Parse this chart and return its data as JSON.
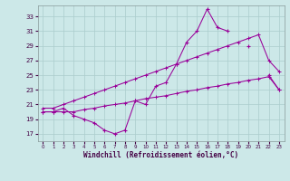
{
  "x": [
    0,
    1,
    2,
    3,
    4,
    5,
    6,
    7,
    8,
    9,
    10,
    11,
    12,
    13,
    14,
    15,
    16,
    17,
    18,
    19,
    20,
    21,
    22,
    23
  ],
  "line_zigzag": [
    20.0,
    20.0,
    20.5,
    19.5,
    19.0,
    18.5,
    17.5,
    17.0,
    17.5,
    21.5,
    21.0,
    23.5,
    24.0,
    26.5,
    29.5,
    31.0,
    34.0,
    31.5,
    31.0,
    null,
    29.0,
    null,
    25.0,
    23.0
  ],
  "line_upper": [
    20.5,
    20.5,
    21.0,
    21.5,
    22.0,
    22.5,
    23.0,
    23.5,
    24.0,
    24.5,
    25.0,
    25.5,
    26.0,
    26.5,
    27.0,
    27.5,
    28.0,
    28.5,
    29.0,
    29.5,
    30.0,
    30.5,
    27.0,
    25.5
  ],
  "line_lower": [
    20.0,
    20.0,
    20.0,
    20.0,
    20.3,
    20.5,
    20.8,
    21.0,
    21.2,
    21.5,
    21.8,
    22.0,
    22.2,
    22.5,
    22.8,
    23.0,
    23.3,
    23.5,
    23.8,
    24.0,
    24.3,
    24.5,
    24.8,
    23.0
  ],
  "color": "#990099",
  "bg_color": "#cce8e8",
  "grid_color": "#aacccc",
  "xlabel": "Windchill (Refroidissement éolien,°C)",
  "ytick_vals": [
    17,
    19,
    21,
    23,
    25,
    27,
    29,
    31,
    33
  ],
  "xtick_vals": [
    0,
    1,
    2,
    3,
    4,
    5,
    6,
    7,
    8,
    9,
    10,
    11,
    12,
    13,
    14,
    15,
    16,
    17,
    18,
    19,
    20,
    21,
    22,
    23
  ],
  "ylim": [
    16.0,
    34.5
  ],
  "xlim": [
    -0.5,
    23.5
  ]
}
